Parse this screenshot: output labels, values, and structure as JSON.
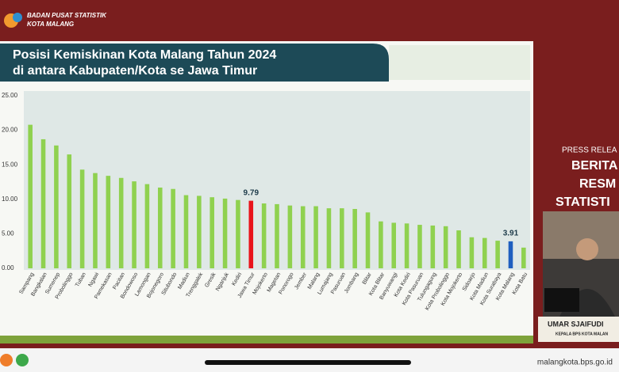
{
  "header": {
    "org": "BADAN PUSAT STATISTIK",
    "org_sub": "KOTA MALANG"
  },
  "side": {
    "press": "PRESS RELEA",
    "line1": "BERITA",
    "line2": "RESM",
    "line3": "STATISTI",
    "speaker": "UMAR SJAIFUDI",
    "speaker_role": "KEPALA BPS KOTA MALAN"
  },
  "footer": {
    "url": "malangkota.bps.go.id"
  },
  "chart_data": {
    "type": "bar",
    "title": "Posisi Kemiskinan Kota Malang Tahun 2024",
    "subtitle": "di antara Kabupaten/Kota se Jawa Timur",
    "categories": [
      "Sampang",
      "Bangkalan",
      "Sumenep",
      "Probolinggo",
      "Tuban",
      "Ngawi",
      "Pamekasan",
      "Pacitan",
      "Bondowoso",
      "Lamongan",
      "Bojonegoro",
      "Situbondo",
      "Madiun",
      "Trenggalek",
      "Gresik",
      "Nganjuk",
      "Kediri",
      "Jawa Timur",
      "Mojokerto",
      "Magetan",
      "Ponorogo",
      "Jember",
      "Malang",
      "Lumajang",
      "Pasuruan",
      "Jombang",
      "Blitar",
      "Kota Blitar",
      "Banyuwangi",
      "Kota Kediri",
      "Kota Pasuruan",
      "Tulungagung",
      "Kota Probolinggo",
      "Kota Mojokerto",
      "Sidoarjo",
      "Kota Madiun",
      "Kota Surabaya",
      "Kota Malang",
      "Kota Batu"
    ],
    "values": [
      20.8,
      18.7,
      17.8,
      16.5,
      14.3,
      13.8,
      13.4,
      13.1,
      12.6,
      12.2,
      11.7,
      11.5,
      10.6,
      10.5,
      10.3,
      10.1,
      9.9,
      9.79,
      9.4,
      9.3,
      9.1,
      9.0,
      9.0,
      8.7,
      8.7,
      8.6,
      8.1,
      6.8,
      6.6,
      6.5,
      6.3,
      6.2,
      6.1,
      5.5,
      4.5,
      4.4,
      4.0,
      3.91,
      3.0
    ],
    "value_labels": [
      null,
      null,
      null,
      null,
      null,
      null,
      null,
      null,
      null,
      null,
      null,
      null,
      null,
      null,
      null,
      null,
      null,
      "9.79",
      null,
      null,
      null,
      null,
      null,
      null,
      null,
      null,
      null,
      null,
      null,
      null,
      null,
      null,
      null,
      null,
      null,
      null,
      null,
      "3.91",
      null
    ],
    "colors": [
      "#8fd14f",
      "#8fd14f",
      "#8fd14f",
      "#8fd14f",
      "#8fd14f",
      "#8fd14f",
      "#8fd14f",
      "#8fd14f",
      "#8fd14f",
      "#8fd14f",
      "#8fd14f",
      "#8fd14f",
      "#8fd14f",
      "#8fd14f",
      "#8fd14f",
      "#8fd14f",
      "#8fd14f",
      "#e8141b",
      "#8fd14f",
      "#8fd14f",
      "#8fd14f",
      "#8fd14f",
      "#8fd14f",
      "#8fd14f",
      "#8fd14f",
      "#8fd14f",
      "#8fd14f",
      "#8fd14f",
      "#8fd14f",
      "#8fd14f",
      "#8fd14f",
      "#8fd14f",
      "#8fd14f",
      "#8fd14f",
      "#8fd14f",
      "#8fd14f",
      "#8fd14f",
      "#1f5fbf",
      "#8fd14f"
    ],
    "ylim": [
      0,
      25
    ],
    "yticks": [
      {
        "value": 0,
        "label": "0.00"
      },
      {
        "value": 5,
        "label": "5.00"
      },
      {
        "value": 10,
        "label": "10.00"
      },
      {
        "value": 15,
        "label": "15.00"
      },
      {
        "value": 20,
        "label": "20.00"
      },
      {
        "value": 25,
        "label": "25.00"
      }
    ],
    "grid": false
  }
}
